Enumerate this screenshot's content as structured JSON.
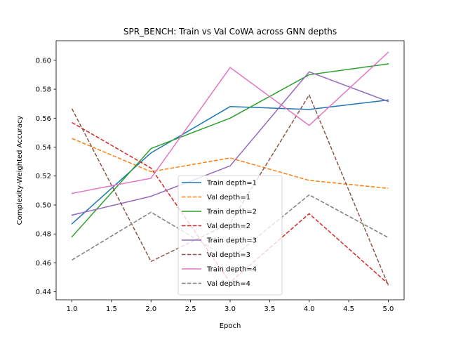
{
  "chart_data": {
    "type": "line",
    "title": "SPR_BENCH: Train vs Val CoWA across GNN depths",
    "xlabel": "Epoch",
    "ylabel": "Complexity-Weighted Accuracy",
    "x": [
      1,
      2,
      3,
      4,
      5
    ],
    "xlim": [
      0.8,
      5.2
    ],
    "ylim": [
      0.4345,
      0.6135
    ],
    "xticks": [
      "1.0",
      "1.5",
      "2.0",
      "2.5",
      "3.0",
      "3.5",
      "4.0",
      "4.5",
      "5.0"
    ],
    "yticks": [
      "0.44",
      "0.46",
      "0.48",
      "0.50",
      "0.52",
      "0.54",
      "0.56",
      "0.58",
      "0.60"
    ],
    "grid": false,
    "legend_position": "lower-center",
    "series": [
      {
        "name": "Train depth=1",
        "color": "#1f77b4",
        "style": "solid",
        "values": [
          0.487,
          0.536,
          0.568,
          0.566,
          0.5725
        ]
      },
      {
        "name": "Val depth=1",
        "color": "#ff7f0e",
        "style": "dashed",
        "values": [
          0.546,
          0.523,
          0.5325,
          0.517,
          0.5115
        ]
      },
      {
        "name": "Train depth=2",
        "color": "#2ca02c",
        "style": "solid",
        "values": [
          0.478,
          0.539,
          0.56,
          0.59,
          0.5975
        ]
      },
      {
        "name": "Val depth=2",
        "color": "#d62728",
        "style": "dashed",
        "values": [
          0.557,
          0.5255,
          0.4465,
          0.494,
          0.4455
        ]
      },
      {
        "name": "Train depth=3",
        "color": "#9467bd",
        "style": "solid",
        "values": [
          0.493,
          0.506,
          0.527,
          0.592,
          0.5715
        ]
      },
      {
        "name": "Val depth=3",
        "color": "#8c564b",
        "style": "dashed",
        "values": [
          0.5665,
          0.461,
          0.4875,
          0.576,
          0.4445
        ]
      },
      {
        "name": "Train depth=4",
        "color": "#e377c2",
        "style": "solid",
        "values": [
          0.508,
          0.5185,
          0.595,
          0.555,
          0.6055
        ]
      },
      {
        "name": "Val depth=4",
        "color": "#7f7f7f",
        "style": "dashed",
        "values": [
          0.462,
          0.495,
          0.4625,
          0.507,
          0.4775
        ]
      }
    ]
  }
}
